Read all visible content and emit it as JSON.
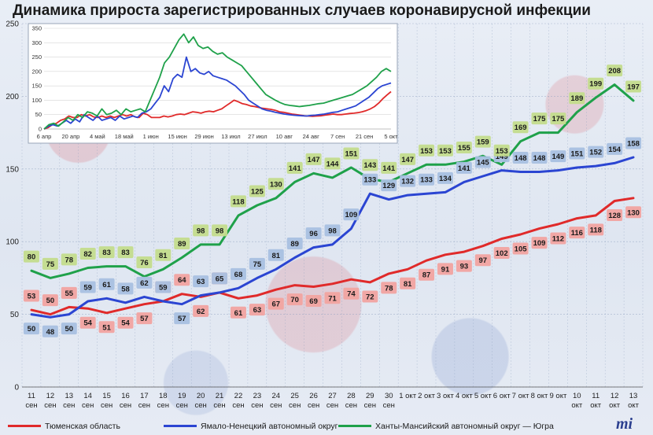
{
  "title": "Динамика прироста зарегистрированных случаев коронавирусной инфекции",
  "chart_data": [
    {
      "type": "line",
      "categories": [
        [
          "11",
          "сен"
        ],
        [
          "12",
          "сен"
        ],
        [
          "13",
          "сен"
        ],
        [
          "14",
          "сен"
        ],
        [
          "15",
          "сен"
        ],
        [
          "16",
          "сен"
        ],
        [
          "17",
          "сен"
        ],
        [
          "18",
          "сен"
        ],
        [
          "19",
          "сен"
        ],
        [
          "20",
          "сен"
        ],
        [
          "21",
          "сен"
        ],
        [
          "22",
          "сен"
        ],
        [
          "23",
          "сен"
        ],
        [
          "24",
          "сен"
        ],
        [
          "25",
          "сен"
        ],
        [
          "26",
          "сен"
        ],
        [
          "27",
          "сен"
        ],
        [
          "28",
          "сен"
        ],
        [
          "29",
          "сен"
        ],
        [
          "30",
          "сен"
        ],
        [
          "1 окт"
        ],
        [
          "2 окт"
        ],
        [
          "3 окт"
        ],
        [
          "4 окт"
        ],
        [
          "5 окт"
        ],
        [
          "6 окт"
        ],
        [
          "7 окт"
        ],
        [
          "8 окт"
        ],
        [
          "9 окт"
        ],
        [
          "10",
          "окт"
        ],
        [
          "11",
          "окт"
        ],
        [
          "12",
          "окт"
        ],
        [
          "13",
          "окт"
        ]
      ],
      "ylim": [
        0,
        250
      ],
      "yticks": [
        "0",
        "50",
        "100",
        "150",
        "200",
        "250"
      ],
      "series": [
        {
          "name": "Тюменская область",
          "color": "#e02a2a",
          "label_bg": "#f1a3a0",
          "values": [
            53,
            50,
            55,
            54,
            51,
            54,
            57,
            59,
            64,
            62,
            65,
            61,
            63,
            67,
            70,
            69,
            71,
            74,
            72,
            78,
            81,
            87,
            91,
            93,
            97,
            102,
            105,
            109,
            112,
            116,
            118,
            128,
            130
          ]
        },
        {
          "name": "Ямало-Ненецкий автономный округ",
          "color": "#2b45d2",
          "label_bg": "#a8c0e0",
          "values": [
            50,
            48,
            50,
            59,
            61,
            58,
            62,
            59,
            57,
            63,
            65,
            68,
            75,
            81,
            89,
            96,
            98,
            109,
            133,
            129,
            132,
            133,
            134,
            141,
            145,
            149,
            148,
            148,
            149,
            151,
            152,
            154,
            158
          ]
        },
        {
          "name": "Ханты-Мансийский автономный округ — Югра",
          "color": "#1fa14a",
          "label_bg": "#c3dc8c",
          "values": [
            80,
            75,
            78,
            82,
            83,
            83,
            76,
            81,
            89,
            98,
            98,
            118,
            125,
            130,
            141,
            147,
            144,
            151,
            143,
            141,
            147,
            153,
            153,
            155,
            159,
            153,
            169,
            175,
            175,
            189,
            199,
            208,
            197
          ]
        }
      ]
    },
    {
      "type": "line",
      "x_ticks": [
        "6 апр",
        "20 апр",
        "4 май",
        "18 май",
        "1 июн",
        "15 июн",
        "29 июн",
        "13 июл",
        "27 июл",
        "10 авг",
        "24 авг",
        "7 сен",
        "21 сен",
        "5 окт"
      ],
      "ylim": [
        0,
        350
      ],
      "yticks": [
        "0",
        "50",
        "100",
        "150",
        "200",
        "250",
        "300",
        "350"
      ],
      "series": [
        {
          "color": "#e02a2a",
          "values": [
            0,
            5,
            15,
            20,
            30,
            35,
            45,
            40,
            40,
            50,
            45,
            50,
            42,
            40,
            45,
            40,
            45,
            40,
            45,
            50,
            45,
            50,
            42,
            40,
            55,
            50,
            40,
            40,
            40,
            45,
            42,
            45,
            50,
            52,
            50,
            55,
            60,
            58,
            55,
            60,
            62,
            60,
            65,
            70,
            80,
            90,
            100,
            95,
            88,
            85,
            80,
            78,
            75,
            72,
            70,
            68,
            65,
            60,
            58,
            55,
            52,
            50,
            48,
            46,
            45,
            44,
            45,
            46,
            48,
            50,
            52,
            50,
            50,
            52,
            54,
            55,
            57,
            60,
            64,
            70,
            78,
            90,
            105,
            118,
            130
          ]
        },
        {
          "color": "#2b45d2",
          "values": [
            0,
            10,
            15,
            10,
            20,
            30,
            20,
            35,
            25,
            50,
            40,
            30,
            45,
            30,
            35,
            40,
            30,
            45,
            35,
            40,
            45,
            40,
            55,
            60,
            70,
            90,
            110,
            150,
            130,
            175,
            190,
            180,
            250,
            200,
            210,
            195,
            190,
            200,
            185,
            180,
            175,
            170,
            160,
            150,
            135,
            120,
            100,
            90,
            80,
            70,
            65,
            62,
            58,
            55,
            52,
            50,
            48,
            47,
            46,
            45,
            47,
            48,
            50,
            52,
            55,
            58,
            60,
            65,
            70,
            75,
            80,
            90,
            100,
            110,
            125,
            140,
            150,
            155,
            160
          ]
        },
        {
          "color": "#1fa14a",
          "values": [
            0,
            15,
            20,
            10,
            25,
            40,
            30,
            50,
            40,
            60,
            55,
            45,
            70,
            50,
            55,
            65,
            50,
            70,
            60,
            65,
            70,
            60,
            100,
            140,
            180,
            230,
            250,
            280,
            310,
            330,
            300,
            320,
            290,
            280,
            285,
            270,
            260,
            265,
            250,
            240,
            230,
            220,
            200,
            180,
            160,
            140,
            120,
            110,
            100,
            92,
            85,
            82,
            80,
            78,
            80,
            82,
            85,
            88,
            90,
            95,
            100,
            105,
            110,
            115,
            120,
            130,
            140,
            150,
            165,
            180,
            200,
            210,
            200
          ]
        }
      ]
    }
  ]
}
